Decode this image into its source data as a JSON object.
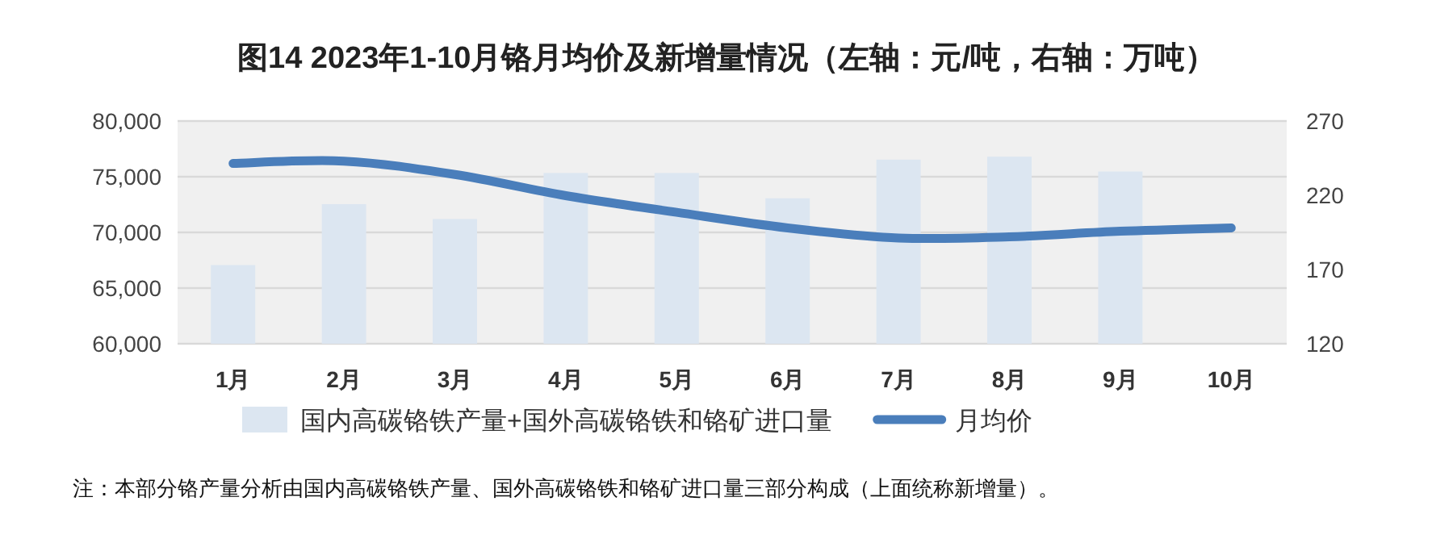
{
  "chart_data": {
    "type": "bar",
    "title": "图14 2023年1-10月铬月均价及新增量情况（左轴：元/吨，右轴：万吨）",
    "categories": [
      "1月",
      "2月",
      "3月",
      "4月",
      "5月",
      "6月",
      "7月",
      "8月",
      "9月",
      "10月"
    ],
    "series": [
      {
        "name": "国内高碳铬铁产量+国外高碳铬铁和铬矿进口量",
        "axis": "y2",
        "color": "#dce6f1",
        "values": [
          173,
          214,
          204,
          235,
          235,
          218,
          244,
          246,
          236,
          null
        ]
      },
      {
        "name": "月均价",
        "type": "line",
        "color": "#4a7ebb",
        "values": [
          76200,
          76400,
          75200,
          73300,
          71800,
          70400,
          69500,
          69600,
          70100,
          70400
        ]
      }
    ],
    "ylim": [
      60000,
      80000
    ],
    "yticks": [
      {
        "value": 60000,
        "label": "60,000"
      },
      {
        "value": 65000,
        "label": "65,000"
      },
      {
        "value": 70000,
        "label": "70,000"
      },
      {
        "value": 75000,
        "label": "75,000"
      },
      {
        "value": 80000,
        "label": "80,000"
      }
    ],
    "y2lim": [
      120,
      270
    ],
    "y2ticks": [
      120,
      170,
      220,
      270
    ],
    "grid": "y",
    "legend": "bottom",
    "marker": "none",
    "line_style": "solid",
    "annotations": [
      "注：本部分铬产量分析由国内高碳铬铁产量、国外高碳铬铁和铬矿进口量三部分构成（上面统称新增量）。"
    ]
  }
}
